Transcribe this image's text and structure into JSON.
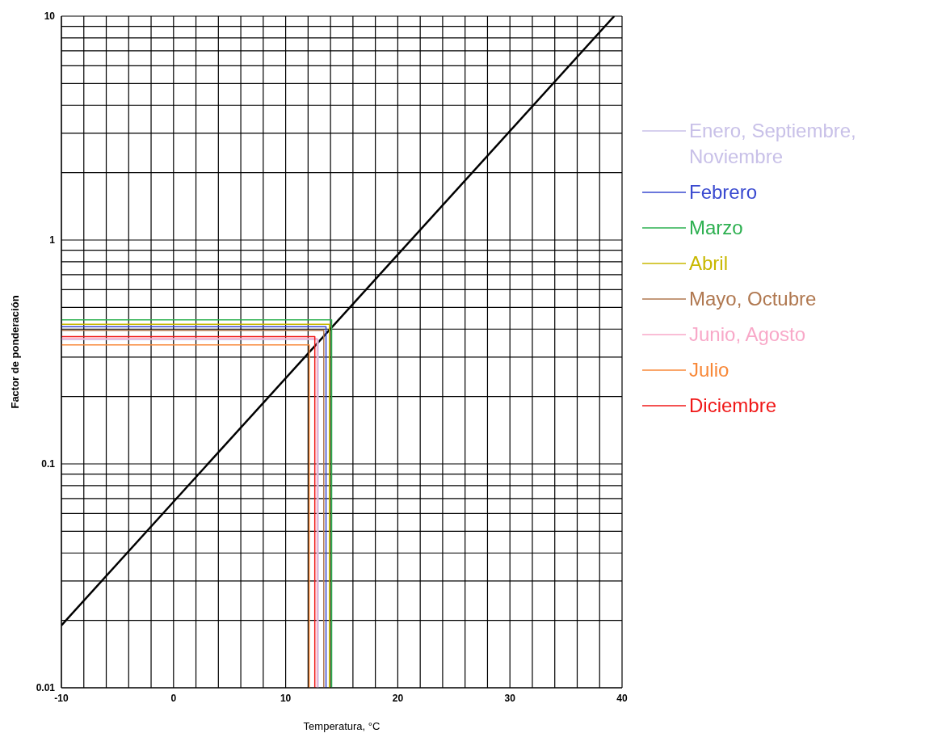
{
  "chart_data": {
    "type": "line",
    "xlabel": "Temperatura, °C",
    "ylabel": "Factor de ponderación",
    "log": "y",
    "grid": true,
    "legend": "right",
    "marker": "none",
    "line_style": "solid",
    "xlim": [
      -10,
      40
    ],
    "ylim": [
      0.01,
      10
    ],
    "xticks": [
      -10,
      {
        "value": -8,
        "label": null
      },
      {
        "value": -6,
        "label": null
      },
      {
        "value": -4,
        "label": null
      },
      {
        "value": -2,
        "label": null
      },
      0,
      {
        "value": 2,
        "label": null
      },
      {
        "value": 4,
        "label": null
      },
      {
        "value": 6,
        "label": null
      },
      {
        "value": 8,
        "label": null
      },
      10,
      {
        "value": 12,
        "label": null
      },
      {
        "value": 14,
        "label": null
      },
      {
        "value": 16,
        "label": null
      },
      {
        "value": 18,
        "label": null
      },
      20,
      {
        "value": 22,
        "label": null
      },
      {
        "value": 24,
        "label": null
      },
      {
        "value": 26,
        "label": null
      },
      {
        "value": 28,
        "label": null
      },
      30,
      {
        "value": 32,
        "label": null
      },
      {
        "value": 34,
        "label": null
      },
      {
        "value": 36,
        "label": null
      },
      {
        "value": 38,
        "label": null
      },
      40
    ],
    "yticks": [
      0.01,
      {
        "value": 0.02,
        "label": null
      },
      {
        "value": 0.03,
        "label": null
      },
      {
        "value": 0.04,
        "label": null
      },
      {
        "value": 0.05,
        "label": null
      },
      {
        "value": 0.06,
        "label": null
      },
      {
        "value": 0.07,
        "label": null
      },
      {
        "value": 0.08,
        "label": null
      },
      {
        "value": 0.09,
        "label": null
      },
      0.1,
      {
        "value": 0.2,
        "label": null
      },
      {
        "value": 0.3,
        "label": null
      },
      {
        "value": 0.4,
        "label": null
      },
      {
        "value": 0.5,
        "label": null
      },
      {
        "value": 0.6,
        "label": null
      },
      {
        "value": 0.7,
        "label": null
      },
      {
        "value": 0.8,
        "label": null
      },
      {
        "value": 0.9,
        "label": null
      },
      1,
      {
        "value": 2,
        "label": null
      },
      {
        "value": 3,
        "label": null
      },
      {
        "value": 4,
        "label": null
      },
      {
        "value": 5,
        "label": null
      },
      {
        "value": 6,
        "label": null
      },
      {
        "value": 7,
        "label": null
      },
      {
        "value": 8,
        "label": null
      },
      {
        "value": 9,
        "label": null
      },
      10
    ],
    "series": [
      {
        "color": "#000000",
        "x": [
          -10,
          39.3
        ],
        "values": [
          0.019,
          10
        ]
      },
      {
        "name": "Enero, Septiembre, Noviembre",
        "color": "#c8c0e8",
        "x": [
          12.9,
          12.9,
          -10
        ],
        "values": [
          0.01,
          0.36,
          0.36
        ]
      },
      {
        "name": "Febrero",
        "color": "#3a4ad0",
        "x": [
          13.6,
          13.6,
          -10
        ],
        "values": [
          0.01,
          0.41,
          0.41
        ]
      },
      {
        "name": "Marzo",
        "color": "#2db050",
        "x": [
          14.1,
          14.1,
          -10
        ],
        "values": [
          0.01,
          0.44,
          0.44
        ]
      },
      {
        "name": "Abril",
        "color": "#c8b800",
        "x": [
          13.9,
          13.9,
          -10
        ],
        "values": [
          0.01,
          0.42,
          0.42
        ]
      },
      {
        "name": "Mayo, Octubre",
        "color": "#b07850",
        "x": [
          13.4,
          13.4,
          -10
        ],
        "values": [
          0.01,
          0.395,
          0.395
        ]
      },
      {
        "name": "Junio, Agosto",
        "color": "#f8a8c8",
        "x": [
          12.8,
          12.8,
          -10
        ],
        "values": [
          0.01,
          0.363,
          0.363
        ]
      },
      {
        "name": "Julio",
        "color": "#f88838",
        "x": [
          12.1,
          12.1,
          -10
        ],
        "values": [
          0.01,
          0.34,
          0.34
        ]
      },
      {
        "name": "Diciembre",
        "color": "#f01818",
        "x": [
          12.6,
          12.6,
          -10
        ],
        "values": [
          0.01,
          0.37,
          0.37
        ]
      }
    ]
  }
}
